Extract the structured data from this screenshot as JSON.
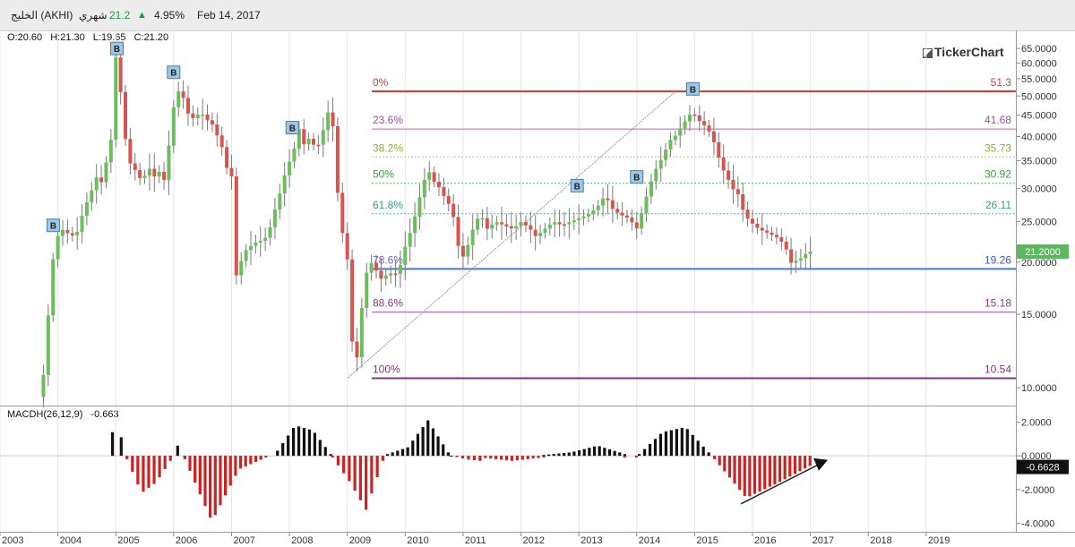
{
  "header": {
    "symbol": "الخليج (AKHI)",
    "period": "شهري",
    "last": "21.2",
    "change_pct": "4.95%",
    "date": "Feb 14, 2017",
    "up_color": "#1a9a3a"
  },
  "ohlc": {
    "open": "O:20.60",
    "high": "H:21.30",
    "low": "L:19.65",
    "close": "C:21.20"
  },
  "brand": "TickerChart",
  "chart_data": [
    {
      "type": "candlestick",
      "scale": "log",
      "ylim": [
        9.2,
        67
      ],
      "xlim": [
        2003.0,
        2020.55
      ],
      "x_ticks": [
        "2003",
        "2004",
        "2005",
        "2006",
        "2007",
        "2008",
        "2009",
        "2010",
        "2011",
        "2012",
        "2013",
        "2014",
        "2015",
        "2016",
        "2017",
        "2018",
        "2019"
      ],
      "y_ticks": [
        "65.0000",
        "60.0000",
        "55.0000",
        "50.0000",
        "45.0000",
        "40.0000",
        "35.0000",
        "30.0000",
        "25.0000",
        "20.0000",
        "15.0000",
        "10.0000"
      ],
      "last_price_label": "21.2000",
      "price_path": [
        [
          2003.75,
          9.5
        ],
        [
          2003.83,
          12
        ],
        [
          2003.92,
          18.5
        ],
        [
          2004.0,
          22.5
        ],
        [
          2004.1,
          24
        ],
        [
          2004.2,
          23.5
        ],
        [
          2004.35,
          23
        ],
        [
          2004.5,
          27
        ],
        [
          2004.6,
          29
        ],
        [
          2004.7,
          32
        ],
        [
          2004.8,
          31
        ],
        [
          2004.9,
          36
        ],
        [
          2004.97,
          40
        ],
        [
          2005.04,
          62
        ],
        [
          2005.1,
          58
        ],
        [
          2005.15,
          45
        ],
        [
          2005.2,
          40
        ],
        [
          2005.3,
          34
        ],
        [
          2005.4,
          33
        ],
        [
          2005.5,
          31
        ],
        [
          2005.6,
          34
        ],
        [
          2005.7,
          32
        ],
        [
          2005.8,
          33
        ],
        [
          2005.9,
          31
        ],
        [
          2006.0,
          44
        ],
        [
          2006.08,
          50
        ],
        [
          2006.15,
          52
        ],
        [
          2006.22,
          49
        ],
        [
          2006.3,
          45
        ],
        [
          2006.4,
          44
        ],
        [
          2006.5,
          46
        ],
        [
          2006.6,
          44
        ],
        [
          2006.7,
          43
        ],
        [
          2006.8,
          40
        ],
        [
          2006.9,
          37
        ],
        [
          2006.97,
          33
        ],
        [
          2007.05,
          32
        ],
        [
          2007.12,
          18.5
        ],
        [
          2007.2,
          20
        ],
        [
          2007.3,
          21.5
        ],
        [
          2007.4,
          22
        ],
        [
          2007.5,
          22.5
        ],
        [
          2007.6,
          22.5
        ],
        [
          2007.7,
          24
        ],
        [
          2007.8,
          27
        ],
        [
          2007.9,
          30
        ],
        [
          2008.0,
          34
        ],
        [
          2008.1,
          36
        ],
        [
          2008.2,
          42
        ],
        [
          2008.3,
          38
        ],
        [
          2008.4,
          40
        ],
        [
          2008.5,
          37
        ],
        [
          2008.6,
          40
        ],
        [
          2008.7,
          46
        ],
        [
          2008.8,
          42
        ],
        [
          2008.9,
          26
        ],
        [
          2008.97,
          23
        ],
        [
          2009.05,
          20
        ],
        [
          2009.12,
          13
        ],
        [
          2009.2,
          11.5
        ],
        [
          2009.28,
          15
        ],
        [
          2009.35,
          18.5
        ],
        [
          2009.45,
          20
        ],
        [
          2009.55,
          19
        ],
        [
          2009.65,
          18
        ],
        [
          2009.75,
          19
        ],
        [
          2009.85,
          18.5
        ],
        [
          2009.95,
          19.5
        ],
        [
          2010.05,
          22
        ],
        [
          2010.15,
          24
        ],
        [
          2010.25,
          27
        ],
        [
          2010.35,
          31
        ],
        [
          2010.45,
          33
        ],
        [
          2010.55,
          31
        ],
        [
          2010.65,
          30
        ],
        [
          2010.75,
          28
        ],
        [
          2010.85,
          27
        ],
        [
          2010.95,
          22
        ],
        [
          2011.05,
          20.5
        ],
        [
          2011.15,
          22.5
        ],
        [
          2011.25,
          25
        ],
        [
          2011.35,
          26
        ],
        [
          2011.45,
          24
        ],
        [
          2011.6,
          25
        ],
        [
          2011.75,
          24.5
        ],
        [
          2011.9,
          24
        ],
        [
          2012.05,
          25
        ],
        [
          2012.2,
          24
        ],
        [
          2012.3,
          23
        ],
        [
          2012.45,
          24
        ],
        [
          2012.6,
          25
        ],
        [
          2012.75,
          24.5
        ],
        [
          2012.9,
          25
        ],
        [
          2013.05,
          25.5
        ],
        [
          2013.2,
          26
        ],
        [
          2013.35,
          27
        ],
        [
          2013.5,
          29
        ],
        [
          2013.6,
          27
        ],
        [
          2013.75,
          26
        ],
        [
          2013.9,
          25.5
        ],
        [
          2014.05,
          24
        ],
        [
          2014.15,
          27
        ],
        [
          2014.25,
          30
        ],
        [
          2014.35,
          33
        ],
        [
          2014.5,
          36
        ],
        [
          2014.6,
          39
        ],
        [
          2014.7,
          40
        ],
        [
          2014.8,
          42
        ],
        [
          2014.9,
          44
        ],
        [
          2015.0,
          46
        ],
        [
          2015.08,
          44
        ],
        [
          2015.18,
          43
        ],
        [
          2015.3,
          41
        ],
        [
          2015.4,
          38
        ],
        [
          2015.5,
          34
        ],
        [
          2015.6,
          32
        ],
        [
          2015.7,
          30
        ],
        [
          2015.8,
          29
        ],
        [
          2015.9,
          26
        ],
        [
          2016.0,
          25
        ],
        [
          2016.15,
          24
        ],
        [
          2016.3,
          23.5
        ],
        [
          2016.45,
          23
        ],
        [
          2016.6,
          22
        ],
        [
          2016.7,
          19.9
        ],
        [
          2016.8,
          20.2
        ],
        [
          2016.9,
          20.5
        ],
        [
          2017.0,
          21.2
        ]
      ],
      "buy_markers": [
        {
          "x": 2003.92,
          "y": 24.5,
          "label": "B"
        },
        {
          "x": 2005.02,
          "y": 65,
          "label": "B"
        },
        {
          "x": 2006.0,
          "y": 57,
          "label": "B"
        },
        {
          "x": 2008.05,
          "y": 42,
          "label": "B"
        },
        {
          "x": 2012.97,
          "y": 30.5,
          "label": "B"
        },
        {
          "x": 2014.0,
          "y": 32,
          "label": "B"
        },
        {
          "x": 2014.97,
          "y": 52,
          "label": "B"
        }
      ],
      "trend_line": [
        [
          2009.0,
          10.54
        ],
        [
          2014.67,
          51.3
        ]
      ],
      "fib_levels": [
        {
          "pct": "0%",
          "value": 51.3,
          "label": "51.3",
          "line_color": "#d83a3a",
          "pct_color": "#d83a3a",
          "val_color": "#c84444",
          "style": "solid",
          "width": 2
        },
        {
          "pct": "23.6%",
          "value": 41.68,
          "label": "41.68",
          "line_color": "#b868b8",
          "pct_color": "#a54ca5",
          "val_color": "#a54ca5",
          "style": "solid",
          "width": 1
        },
        {
          "pct": "38.2%",
          "value": 35.73,
          "label": "35.73",
          "line_color": "#a8c860",
          "pct_color": "#90a830",
          "val_color": "#90a830",
          "style": "dotted",
          "width": 1
        },
        {
          "pct": "50%",
          "value": 30.92,
          "label": "30.92",
          "line_color": "#68b868",
          "pct_color": "#3e9a3e",
          "val_color": "#3e9a3e",
          "style": "dotted",
          "width": 1
        },
        {
          "pct": "61.8%",
          "value": 26.11,
          "label": "26.11",
          "line_color": "#5cb8a0",
          "pct_color": "#3aa088",
          "val_color": "#3aa088",
          "style": "dotted",
          "width": 1
        },
        {
          "pct": "78.6%",
          "value": 19.26,
          "label": "19.26",
          "line_color": "#4a78d8",
          "pct_color": "#7a60b8",
          "val_color": "#3a5ab8",
          "style": "solid",
          "width": 2
        },
        {
          "pct": "88.6%",
          "value": 15.18,
          "label": "15.18",
          "line_color": "#a054a0",
          "pct_color": "#8a3a8a",
          "val_color": "#8a3a8a",
          "style": "solid",
          "width": 1
        },
        {
          "pct": "100%",
          "value": 10.54,
          "label": "10.54",
          "line_color": "#7a3a7a",
          "pct_color": "#7a3a7a",
          "val_color": "#7a3a7a",
          "style": "solid",
          "width": 2
        }
      ],
      "colors": {
        "up": "#6bbf5a",
        "down": "#d9534f",
        "wick": "#7a7a7a",
        "marker_fill": "#9ec8e6"
      }
    },
    {
      "type": "bar",
      "title": "MACDH(26,12,9)",
      "current_value": "-0.663",
      "last_value_label": "-0.6628",
      "ylim": [
        -4.4,
        2.5
      ],
      "y_ticks": [
        "2.0000",
        "0.0000",
        "-2.0000",
        "-4.0000"
      ],
      "series": [
        {
          "x0": 2004.95,
          "x1": 2005.1,
          "v": [
            1.4,
            1.1
          ]
        },
        {
          "x0": 2005.2,
          "x1": 2005.95,
          "v": [
            -0.2,
            -2.2,
            -1.6,
            -0.3
          ]
        },
        {
          "x0": 2005.95,
          "x1": 2006.2,
          "v": [
            -0.1,
            0.6,
            -0.1
          ]
        },
        {
          "x0": 2006.2,
          "x1": 2007.6,
          "v": [
            -0.2,
            -3.9,
            -0.8,
            -0.1
          ]
        },
        {
          "x0": 2007.8,
          "x1": 2008.72,
          "v": [
            0.3,
            1.8,
            1.5,
            0.1
          ]
        },
        {
          "x0": 2008.75,
          "x1": 2009.62,
          "v": [
            -0.1,
            -1.5,
            -3.2,
            -0.3
          ]
        },
        {
          "x0": 2009.7,
          "x1": 2010.75,
          "v": [
            0.1,
            0.5,
            2.1,
            0.2
          ]
        },
        {
          "x0": 2010.8,
          "x1": 2011.3,
          "v": [
            0.0,
            -0.2,
            -0.3
          ]
        },
        {
          "x0": 2011.3,
          "x1": 2012.4,
          "v": [
            -0.1,
            -0.3,
            -0.1
          ]
        },
        {
          "x0": 2012.4,
          "x1": 2013.8,
          "v": [
            0.05,
            0.2,
            0.6,
            0.1
          ]
        },
        {
          "x0": 2013.8,
          "x1": 2014.0,
          "v": [
            -0.1,
            -0.2,
            -0.1
          ]
        },
        {
          "x0": 2014.05,
          "x1": 2015.25,
          "v": [
            0.1,
            1.4,
            1.7,
            0.2
          ]
        },
        {
          "x0": 2015.35,
          "x1": 2017.0,
          "v": [
            -0.2,
            -2.5,
            -1.6,
            -0.6
          ]
        }
      ],
      "arrow": [
        [
          2015.8,
          -2.85
        ],
        [
          2017.3,
          -0.25
        ]
      ],
      "colors": {
        "pos": "#111111",
        "neg": "#cc2222"
      }
    }
  ]
}
